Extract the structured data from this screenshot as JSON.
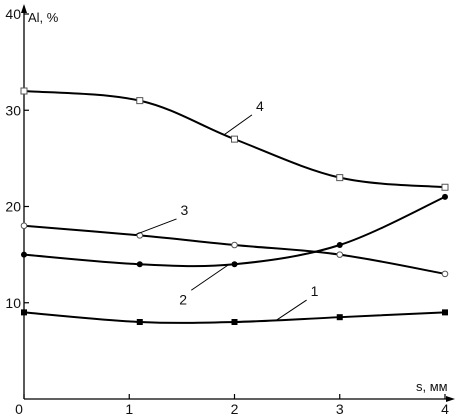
{
  "chart_data": {
    "type": "line",
    "title": "",
    "xlabel": "s, мм",
    "ylabel": "Al, %",
    "xlim": [
      0,
      4
    ],
    "ylim": [
      0,
      40
    ],
    "x_ticks": [
      "0",
      "1",
      "2",
      "3",
      "4"
    ],
    "y_ticks": [
      "10",
      "20",
      "30",
      "40"
    ],
    "x": [
      0,
      1.1,
      2,
      3,
      4
    ],
    "grid": false,
    "series": [
      {
        "name": "1",
        "values": [
          9,
          8,
          8,
          8.5,
          9
        ],
        "marker": "filled-square",
        "label_at": 2.4
      },
      {
        "name": "2",
        "values": [
          15,
          14,
          14,
          16,
          21
        ],
        "marker": "filled-circle",
        "label_at": 1.95
      },
      {
        "name": "3",
        "values": [
          18,
          17,
          16,
          15,
          13
        ],
        "marker": "open-circle",
        "label_at": 1.05
      },
      {
        "name": "4",
        "values": [
          32,
          31,
          27,
          23,
          22
        ],
        "marker": "open-square",
        "label_at": 1.9
      }
    ]
  }
}
